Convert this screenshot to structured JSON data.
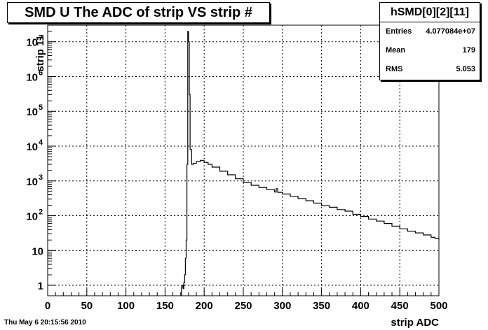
{
  "header": {
    "title": "SMD U The ADC of strip VS strip #"
  },
  "stats": {
    "name": "hSMD[0][2][11]",
    "entries_label": "Entries",
    "entries_value": "4.077084e+07",
    "mean_label": "Mean",
    "mean_value": "179",
    "rms_label": "RMS",
    "rms_value": "5.053"
  },
  "footer": {
    "date": "Thu May  6 20:15:56 2010"
  },
  "chart_data": {
    "type": "line",
    "title": "SMD U The ADC of strip VS strip #",
    "xlabel": "strip ADC",
    "ylabel": "strip 11",
    "xlim": [
      0,
      500
    ],
    "ylim": [
      0.5,
      30000000
    ],
    "log_y": true,
    "grid": true,
    "x_ticks": [
      "0",
      "50",
      "100",
      "150",
      "200",
      "250",
      "300",
      "350",
      "400",
      "450",
      "500"
    ],
    "y_ticks": [
      {
        "value": 1,
        "label": "1"
      },
      {
        "value": 10,
        "label": "10"
      },
      {
        "value": 100,
        "label": "10",
        "exp": "2"
      },
      {
        "value": 1000,
        "label": "10",
        "exp": "3"
      },
      {
        "value": 10000,
        "label": "10",
        "exp": "4"
      },
      {
        "value": 100000,
        "label": "10",
        "exp": "5"
      },
      {
        "value": 1000000,
        "label": "10",
        "exp": "6"
      },
      {
        "value": 10000000,
        "label": "10",
        "exp": "7"
      }
    ],
    "series": [
      {
        "points": [
          [
            170,
            0.5
          ],
          [
            171,
            0.9
          ],
          [
            172,
            1
          ],
          [
            173,
            0.8
          ],
          [
            174,
            1.2
          ],
          [
            175,
            2
          ],
          [
            176,
            6
          ],
          [
            177,
            20
          ],
          [
            178,
            3000
          ],
          [
            179,
            20000000
          ],
          [
            180,
            10000000
          ],
          [
            181,
            300000
          ],
          [
            182,
            8000
          ],
          [
            184,
            3000
          ],
          [
            186,
            3200
          ],
          [
            190,
            3600
          ],
          [
            195,
            3900
          ],
          [
            198,
            3800
          ],
          [
            200,
            3400
          ],
          [
            205,
            3000
          ],
          [
            210,
            2500
          ],
          [
            220,
            1900
          ],
          [
            230,
            1500
          ],
          [
            240,
            1150
          ],
          [
            250,
            900
          ],
          [
            260,
            750
          ],
          [
            270,
            650
          ],
          [
            280,
            560
          ],
          [
            290,
            480
          ],
          [
            292,
            600
          ],
          [
            294,
            470
          ],
          [
            300,
            420
          ],
          [
            310,
            360
          ],
          [
            320,
            310
          ],
          [
            330,
            270
          ],
          [
            340,
            230
          ],
          [
            350,
            195
          ],
          [
            360,
            175
          ],
          [
            370,
            150
          ],
          [
            380,
            135
          ],
          [
            390,
            110
          ],
          [
            400,
            95
          ],
          [
            410,
            80
          ],
          [
            420,
            70
          ],
          [
            430,
            60
          ],
          [
            440,
            50
          ],
          [
            450,
            42
          ],
          [
            460,
            36
          ],
          [
            470,
            32
          ],
          [
            480,
            28
          ],
          [
            490,
            24
          ],
          [
            495,
            22
          ],
          [
            500,
            20
          ]
        ]
      }
    ]
  }
}
